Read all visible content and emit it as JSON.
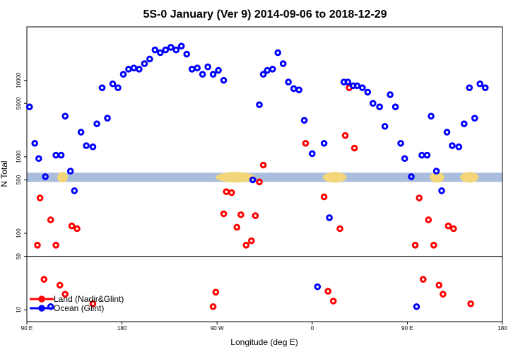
{
  "chart_data": {
    "type": "scatter",
    "title": "5S-0 January (Ver 9)   2014-09-06 to 2018-12-29",
    "xlabel": "Longitude (deg E)",
    "ylabel": "N Total",
    "xlim": [
      90,
      450
    ],
    "ylim_log": [
      7,
      50000
    ],
    "x_ticks": [
      {
        "value": 90,
        "label": "90 E"
      },
      {
        "value": 162,
        "label": "180"
      },
      {
        "value": 234,
        "label": "90 W"
      },
      {
        "value": 306,
        "label": "0"
      },
      {
        "value": 378,
        "label": "90 E"
      },
      {
        "value": 450,
        "label": "180"
      }
    ],
    "y_ticks": [
      {
        "value": 10,
        "label": "10"
      },
      {
        "value": 50,
        "label": "50"
      },
      {
        "value": 100,
        "label": "100"
      },
      {
        "value": 500,
        "label": "500"
      },
      {
        "value": 1000,
        "label": "1000"
      },
      {
        "value": 5000,
        "label": "5000"
      },
      {
        "value": 10000,
        "label": "10000"
      }
    ],
    "separator_y": 50,
    "band": {
      "y_low": 470,
      "y_high": 620,
      "color": "#a9bedd",
      "land_color": "#f3d67a"
    },
    "legend": {
      "position": "bottom-left",
      "entries": [
        {
          "name": "Land (Nadir&Glint)",
          "color": "#ff0000"
        },
        {
          "name": "Ocean (Glint)",
          "color": "#0000ff"
        }
      ]
    },
    "series": [
      {
        "name": "Land (Nadir&Glint)",
        "color": "#ff0000",
        "points": [
          [
            98,
            70
          ],
          [
            100,
            290
          ],
          [
            103,
            25
          ],
          [
            108,
            150
          ],
          [
            112,
            70
          ],
          [
            115,
            21
          ],
          [
            119,
            16
          ],
          [
            124,
            125
          ],
          [
            128,
            115
          ],
          [
            140,
            12
          ],
          [
            231,
            11
          ],
          [
            233,
            17
          ],
          [
            239,
            180
          ],
          [
            241,
            350
          ],
          [
            245,
            340
          ],
          [
            249,
            120
          ],
          [
            252,
            175
          ],
          [
            256,
            70
          ],
          [
            260,
            80
          ],
          [
            263,
            170
          ],
          [
            266,
            470
          ],
          [
            269,
            780
          ],
          [
            301,
            1500
          ],
          [
            315,
            300
          ],
          [
            318,
            17.5
          ],
          [
            322,
            13
          ],
          [
            327,
            115
          ],
          [
            331,
            1900
          ],
          [
            334,
            8000
          ],
          [
            338,
            1300
          ],
          [
            384,
            70
          ],
          [
            387,
            290
          ],
          [
            390,
            25
          ],
          [
            394,
            150
          ],
          [
            398,
            70
          ],
          [
            402,
            21
          ],
          [
            405,
            16
          ],
          [
            409,
            125
          ],
          [
            413,
            115
          ],
          [
            426,
            12
          ]
        ]
      },
      {
        "name": "Ocean (Glint)",
        "color": "#0000ff",
        "points": [
          [
            92,
            4500
          ],
          [
            96,
            1500
          ],
          [
            99,
            950
          ],
          [
            104,
            550
          ],
          [
            108,
            11
          ],
          [
            112,
            1050
          ],
          [
            116,
            1050
          ],
          [
            119,
            3400
          ],
          [
            123,
            650
          ],
          [
            126,
            360
          ],
          [
            131,
            2100
          ],
          [
            135,
            1400
          ],
          [
            140,
            1350
          ],
          [
            143,
            2700
          ],
          [
            147,
            8000
          ],
          [
            151,
            3200
          ],
          [
            155,
            9000
          ],
          [
            159,
            8000
          ],
          [
            163,
            12000
          ],
          [
            167,
            14000
          ],
          [
            171,
            14500
          ],
          [
            175,
            14000
          ],
          [
            179,
            16500
          ],
          [
            183,
            19000
          ],
          [
            187,
            25000
          ],
          [
            191,
            23000
          ],
          [
            195,
            25000
          ],
          [
            199,
            27000
          ],
          [
            203,
            25000
          ],
          [
            207,
            28000
          ],
          [
            211,
            22000
          ],
          [
            215,
            14000
          ],
          [
            219,
            14500
          ],
          [
            223,
            12000
          ],
          [
            227,
            15000
          ],
          [
            231,
            12000
          ],
          [
            235,
            13500
          ],
          [
            239,
            10000
          ],
          [
            261,
            500
          ],
          [
            266,
            4800
          ],
          [
            269,
            12000
          ],
          [
            272,
            13500
          ],
          [
            276,
            14000
          ],
          [
            280,
            23000
          ],
          [
            284,
            16500
          ],
          [
            288,
            9500
          ],
          [
            292,
            7800
          ],
          [
            296,
            7500
          ],
          [
            300,
            3000
          ],
          [
            306,
            1100
          ],
          [
            310,
            20
          ],
          [
            315,
            1500
          ],
          [
            319,
            160
          ],
          [
            330,
            9500
          ],
          [
            333,
            9500
          ],
          [
            337,
            8500
          ],
          [
            340,
            8500
          ],
          [
            344,
            8000
          ],
          [
            348,
            7000
          ],
          [
            352,
            5000
          ],
          [
            357,
            4500
          ],
          [
            361,
            2500
          ],
          [
            365,
            6500
          ],
          [
            369,
            4500
          ],
          [
            373,
            1500
          ],
          [
            376,
            950
          ],
          [
            381,
            550
          ],
          [
            385,
            11
          ],
          [
            389,
            1050
          ],
          [
            393,
            1050
          ],
          [
            396,
            3400
          ],
          [
            400,
            650
          ],
          [
            404,
            360
          ],
          [
            408,
            2100
          ],
          [
            412,
            1400
          ],
          [
            417,
            1350
          ],
          [
            421,
            2700
          ],
          [
            425,
            8000
          ],
          [
            429,
            3200
          ],
          [
            433,
            9000
          ],
          [
            437,
            8000
          ]
        ]
      }
    ]
  }
}
